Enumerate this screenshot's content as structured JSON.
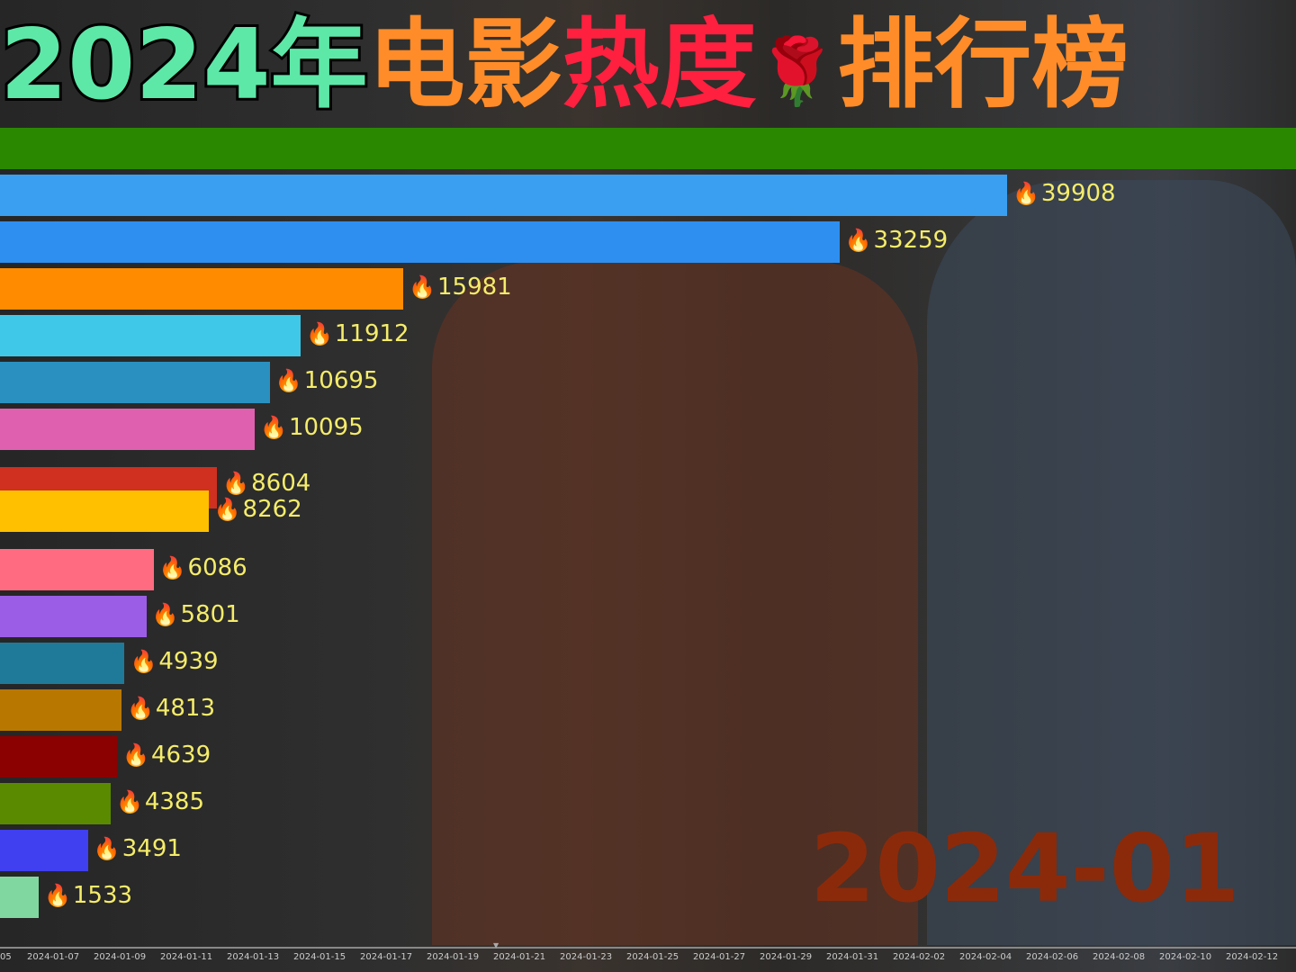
{
  "title": {
    "part1": "2024年",
    "part2": "电影",
    "part3": "热度",
    "emoji": "🌹",
    "part4": "排行榜"
  },
  "current_date_label": "2024-01",
  "chart_data": {
    "type": "bar",
    "orientation": "horizontal",
    "value_prefix_icon": "fire-icon",
    "values": [
      39908,
      33259,
      15981,
      11912,
      10695,
      10095,
      8604,
      8262,
      6086,
      5801,
      4939,
      4813,
      4639,
      4385,
      3491,
      1533
    ],
    "colors": [
      "#3a9ff0",
      "#2e8ff0",
      "#ff8c00",
      "#40c8e8",
      "#2a90c0",
      "#e060b0",
      "#d03020",
      "#ffc000",
      "#ff6b80",
      "#9b5de5",
      "#1f7a99",
      "#b87800",
      "#8b0000",
      "#5a8a00",
      "#4040f0",
      "#80d8a0"
    ],
    "timeline_ticks": [
      "05",
      "2024-01-07",
      "2024-01-09",
      "2024-01-11",
      "2024-01-13",
      "2024-01-15",
      "2024-01-17",
      "2024-01-19",
      "2024-01-21",
      "2024-01-23",
      "2024-01-25",
      "2024-01-27",
      "2024-01-29",
      "2024-01-31",
      "2024-02-02",
      "2024-02-04",
      "2024-02-06",
      "2024-02-08",
      "2024-02-10",
      "2024-02-12"
    ]
  }
}
